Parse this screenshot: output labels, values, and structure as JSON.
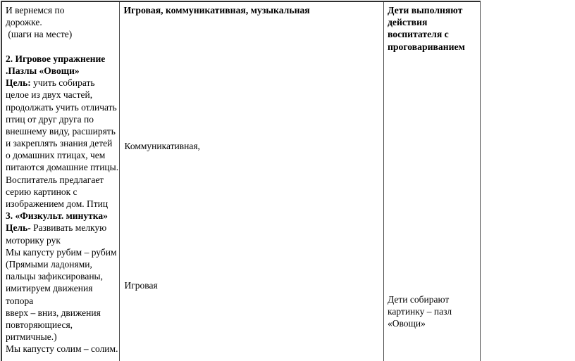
{
  "page": {
    "background_color": "#ffffff",
    "border_color": "#3a3a3a",
    "text_color": "#000000"
  },
  "table": {
    "left_column": {
      "lines": [
        {
          "b": "",
          "t": "И вернемся по"
        },
        {
          "b": "",
          "t": "дорожке."
        },
        {
          "b": "",
          "t": " (шаги на месте)"
        },
        {
          "b": "",
          "t": ""
        },
        {
          "b": "2. Игровое упражнение",
          "t": ""
        },
        {
          "b": ".Пазлы «Овощи»",
          "t": ""
        },
        {
          "b": "Цель:",
          "t": " учить собирать"
        },
        {
          "b": "",
          "t": "целое из двух частей,"
        },
        {
          "b": "",
          "t": "продолжать учить отличать"
        },
        {
          "b": "",
          "t": "птиц от друг друга по"
        },
        {
          "b": "",
          "t": "внешнему виду, расширять"
        },
        {
          "b": "",
          "t": "и закреплять знания детей"
        },
        {
          "b": "",
          "t": "о домашних птицах, чем"
        },
        {
          "b": "",
          "t": "питаются домашние птицы."
        },
        {
          "b": "",
          "t": "Воспитатель предлагает"
        },
        {
          "b": "",
          "t": "серию картинок с"
        },
        {
          "b": "",
          "t": "изображением дом. Птиц"
        },
        {
          "b": "3. «Физкульт. минутка»",
          "t": ""
        },
        {
          "b": "Цель-",
          "t": " Развивать мелкую"
        },
        {
          "b": "",
          "t": "моторику рук"
        },
        {
          "b": "",
          "t": "Мы капусту рубим – рубим"
        },
        {
          "b": "",
          "t": "(Прямыми ладонями,"
        },
        {
          "b": "",
          "t": "пальцы зафиксированы,"
        },
        {
          "b": "",
          "t": "имитируем движения"
        },
        {
          "b": "",
          "t": "топора"
        },
        {
          "b": "",
          "t": "вверх – вниз, движения"
        },
        {
          "b": "",
          "t": "повторяющиеся,"
        },
        {
          "b": "",
          "t": "ритмичные.)"
        },
        {
          "b": "",
          "t": "Мы капусту солим – солим."
        }
      ]
    },
    "middle_column": {
      "header": "Игровая, коммуникативная, музыкальная",
      "item_communicative": "Коммуникативная,",
      "item_game": "Игровая"
    },
    "right_column": {
      "header": "Дети выполняют\nдействия\nвоспитателя с\nпроговариванием",
      "body": "Дети собирают\nкартинку – пазл\n«Овощи»"
    }
  }
}
